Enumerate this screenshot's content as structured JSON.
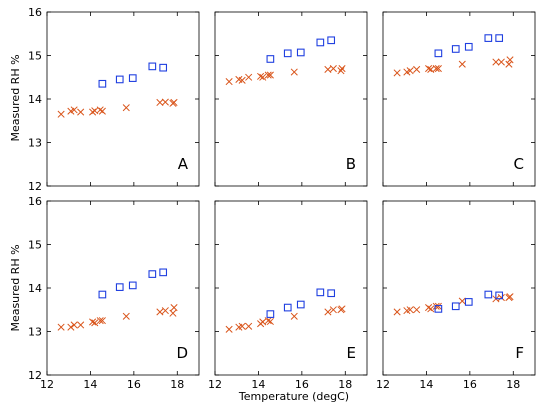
{
  "chart_data": {
    "type": "scatter",
    "xlabel": "Temperature (degC)",
    "ylabel": "Measured RH %",
    "xlim": [
      12,
      19
    ],
    "ylim": [
      12,
      16
    ],
    "xticks": [
      "12",
      "14",
      "16",
      "18"
    ],
    "yticks": [
      "12",
      "13",
      "14",
      "15",
      "16"
    ],
    "grid": false,
    "colors": {
      "square": "#1f3fe0",
      "cross": "#d9541a"
    },
    "panels": [
      {
        "label": "A",
        "squares": [
          [
            14.55,
            14.35
          ],
          [
            15.35,
            14.45
          ],
          [
            15.95,
            14.48
          ],
          [
            16.85,
            14.75
          ],
          [
            17.35,
            14.72
          ]
        ],
        "crosses": [
          [
            12.65,
            13.65
          ],
          [
            13.1,
            13.72
          ],
          [
            13.25,
            13.75
          ],
          [
            13.55,
            13.7
          ],
          [
            14.1,
            13.7
          ],
          [
            14.2,
            13.73
          ],
          [
            14.45,
            13.75
          ],
          [
            14.55,
            13.72
          ],
          [
            15.65,
            13.8
          ],
          [
            17.2,
            13.92
          ],
          [
            17.45,
            13.93
          ],
          [
            17.8,
            13.9
          ],
          [
            17.85,
            13.92
          ]
        ]
      },
      {
        "label": "B",
        "squares": [
          [
            14.55,
            14.92
          ],
          [
            15.35,
            15.05
          ],
          [
            15.95,
            15.07
          ],
          [
            16.85,
            15.3
          ],
          [
            17.35,
            15.35
          ]
        ],
        "crosses": [
          [
            12.65,
            14.4
          ],
          [
            13.1,
            14.45
          ],
          [
            13.25,
            14.43
          ],
          [
            13.55,
            14.5
          ],
          [
            14.1,
            14.52
          ],
          [
            14.2,
            14.5
          ],
          [
            14.45,
            14.55
          ],
          [
            14.55,
            14.55
          ],
          [
            15.65,
            14.62
          ],
          [
            17.2,
            14.68
          ],
          [
            17.45,
            14.7
          ],
          [
            17.8,
            14.65
          ],
          [
            17.85,
            14.7
          ]
        ]
      },
      {
        "label": "C",
        "squares": [
          [
            14.55,
            15.05
          ],
          [
            15.35,
            15.15
          ],
          [
            15.95,
            15.2
          ],
          [
            16.85,
            15.4
          ],
          [
            17.35,
            15.4
          ]
        ],
        "crosses": [
          [
            12.65,
            14.6
          ],
          [
            13.1,
            14.62
          ],
          [
            13.25,
            14.65
          ],
          [
            13.55,
            14.68
          ],
          [
            14.1,
            14.7
          ],
          [
            14.2,
            14.68
          ],
          [
            14.45,
            14.7
          ],
          [
            14.55,
            14.7
          ],
          [
            15.65,
            14.8
          ],
          [
            17.2,
            14.85
          ],
          [
            17.45,
            14.85
          ],
          [
            17.8,
            14.8
          ],
          [
            17.85,
            14.9
          ]
        ]
      },
      {
        "label": "D",
        "squares": [
          [
            14.55,
            13.85
          ],
          [
            15.35,
            14.02
          ],
          [
            15.95,
            14.06
          ],
          [
            16.85,
            14.32
          ],
          [
            17.35,
            14.36
          ]
        ],
        "crosses": [
          [
            12.65,
            13.1
          ],
          [
            13.1,
            13.1
          ],
          [
            13.25,
            13.15
          ],
          [
            13.55,
            13.15
          ],
          [
            14.1,
            13.22
          ],
          [
            14.2,
            13.2
          ],
          [
            14.45,
            13.25
          ],
          [
            14.55,
            13.25
          ],
          [
            15.65,
            13.35
          ],
          [
            17.2,
            13.45
          ],
          [
            17.45,
            13.48
          ],
          [
            17.8,
            13.42
          ],
          [
            17.85,
            13.55
          ]
        ]
      },
      {
        "label": "E",
        "squares": [
          [
            14.55,
            13.4
          ],
          [
            15.35,
            13.55
          ],
          [
            15.95,
            13.62
          ],
          [
            16.85,
            13.9
          ],
          [
            17.35,
            13.88
          ]
        ],
        "crosses": [
          [
            12.65,
            13.05
          ],
          [
            13.1,
            13.1
          ],
          [
            13.25,
            13.12
          ],
          [
            13.55,
            13.12
          ],
          [
            14.1,
            13.18
          ],
          [
            14.2,
            13.22
          ],
          [
            14.45,
            13.25
          ],
          [
            14.55,
            13.23
          ],
          [
            15.65,
            13.35
          ],
          [
            17.2,
            13.45
          ],
          [
            17.45,
            13.5
          ],
          [
            17.8,
            13.5
          ],
          [
            17.85,
            13.52
          ]
        ]
      },
      {
        "label": "F",
        "squares": [
          [
            14.55,
            13.52
          ],
          [
            15.35,
            13.58
          ],
          [
            15.95,
            13.68
          ],
          [
            16.85,
            13.85
          ],
          [
            17.35,
            13.83
          ]
        ],
        "crosses": [
          [
            12.65,
            13.45
          ],
          [
            13.1,
            13.48
          ],
          [
            13.25,
            13.5
          ],
          [
            13.55,
            13.5
          ],
          [
            14.1,
            13.55
          ],
          [
            14.2,
            13.52
          ],
          [
            14.45,
            13.58
          ],
          [
            14.55,
            13.58
          ],
          [
            15.65,
            13.7
          ],
          [
            17.2,
            13.75
          ],
          [
            17.45,
            13.78
          ],
          [
            17.8,
            13.78
          ],
          [
            17.85,
            13.8
          ]
        ]
      }
    ]
  }
}
